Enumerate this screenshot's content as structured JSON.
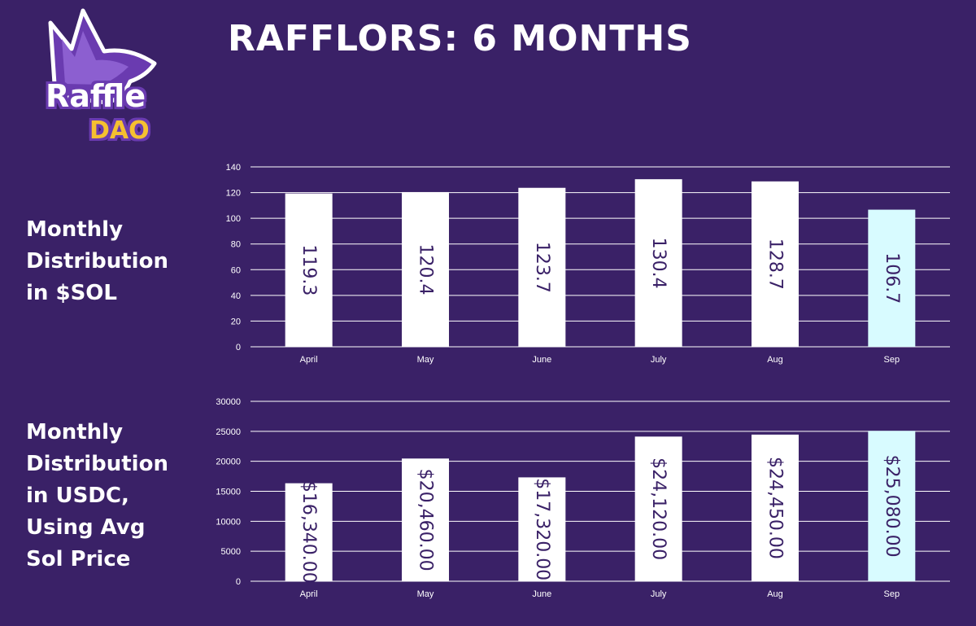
{
  "header": {
    "title": "RAFFLORS: 6 MONTHS"
  },
  "logo": {
    "top_text": "Raffle",
    "bottom_text": "DAO"
  },
  "side_labels": {
    "sol": "Monthly\nDistribution\nin $SOL",
    "usdc": "Monthly\nDistribution\nin USDC,\nUsing Avg\nSol Price"
  },
  "colors": {
    "background": "#3a2167",
    "bar": "#ffffff",
    "bar_highlight": "#d8fbff",
    "label_text": "#3a2167",
    "logo_purple": "#6a3bb0",
    "logo_gold": "#f5c030"
  },
  "chart_data": [
    {
      "type": "bar",
      "title": "Monthly Distribution in $SOL",
      "categories": [
        "April",
        "May",
        "June",
        "July",
        "Aug",
        "Sep"
      ],
      "values": [
        119.3,
        120.4,
        123.7,
        130.4,
        128.7,
        106.7
      ],
      "labels": [
        "119.3",
        "120.4",
        "123.7",
        "130.4",
        "128.7",
        "106.7"
      ],
      "highlight_index": 5,
      "ylim": [
        0,
        140
      ],
      "yticks": [
        0,
        20,
        40,
        60,
        80,
        100,
        120,
        140
      ],
      "grid": true
    },
    {
      "type": "bar",
      "title": "Monthly Distribution in USDC, Using Avg Sol Price",
      "categories": [
        "April",
        "May",
        "June",
        "July",
        "Aug",
        "Sep"
      ],
      "values": [
        16340,
        20460,
        17320,
        24120,
        24450,
        25080
      ],
      "labels": [
        "$16,340.00",
        "$20,460.00",
        "$17,320.00",
        "$24,120.00",
        "$24,450.00",
        "$25,080.00"
      ],
      "highlight_index": 5,
      "ylim": [
        0,
        30000
      ],
      "yticks": [
        0,
        5000,
        10000,
        15000,
        20000,
        25000,
        30000
      ],
      "grid": true
    }
  ]
}
